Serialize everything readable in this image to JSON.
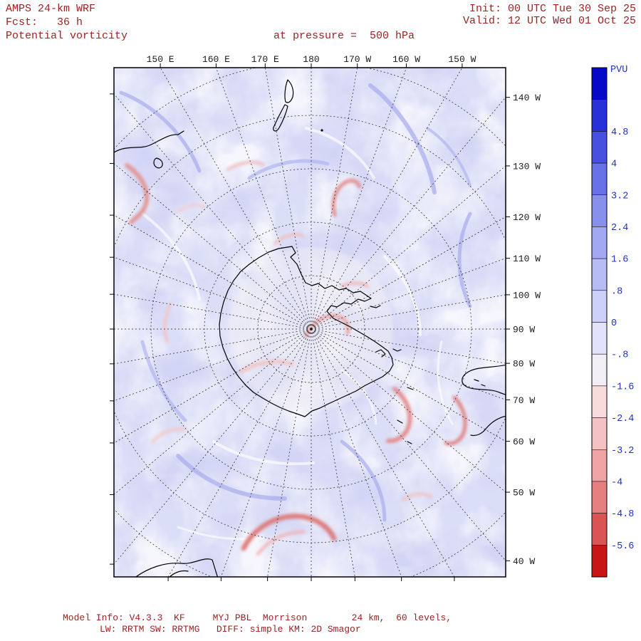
{
  "header": {
    "model": "AMPS 24-km WRF",
    "fcst": "Fcst:   36 h",
    "field": "Potential vorticity",
    "level": "at pressure =  500 hPa",
    "init": "Init: 00 UTC Tue 30 Sep 25",
    "valid": "Valid: 12 UTC Wed 01 Oct 25"
  },
  "footer": {
    "line1": "Model Info: V4.3.3  KF     MYJ PBL  Morrison        24 km,  60 levels,",
    "line2": "LW: RRTM SW: RRTMG   DIFF: simple KM: 2D Smagor"
  },
  "map": {
    "projection": "south-polar-stereographic",
    "top_axis_labels": [
      "150 E",
      "160 E",
      "170 E",
      "180",
      "170 W",
      "160 W",
      "150 W"
    ],
    "right_axis_labels": [
      "140 W",
      "130 W",
      "120 W",
      "110 W",
      "100 W",
      "90 W",
      "80 W",
      "70 W",
      "60 W",
      "50 W",
      "40 W"
    ]
  },
  "colorbar": {
    "unit": "PVU",
    "tick_labels": [
      "4.8",
      "4",
      "3.2",
      "2.4",
      "1.6",
      ".8",
      "0",
      "-.8",
      "-1.6",
      "-2.4",
      "-3.2",
      "-4",
      "-4.8",
      "-5.6"
    ],
    "colors": [
      "#0808c8",
      "#2830d8",
      "#4850e0",
      "#6870e8",
      "#8890ee",
      "#a2a8f2",
      "#b8bcf5",
      "#cdd0f8",
      "#e2e2fa",
      "#f1eef6",
      "#f8dcdc",
      "#f4c2c2",
      "#eea4a4",
      "#e68080",
      "#da5454",
      "#c81616"
    ]
  },
  "colors": {
    "title_text": "#9b2323",
    "axis_text": "#1a1a1a",
    "colorbar_text": "#2233bb",
    "field_base": "#d3d5f4"
  }
}
